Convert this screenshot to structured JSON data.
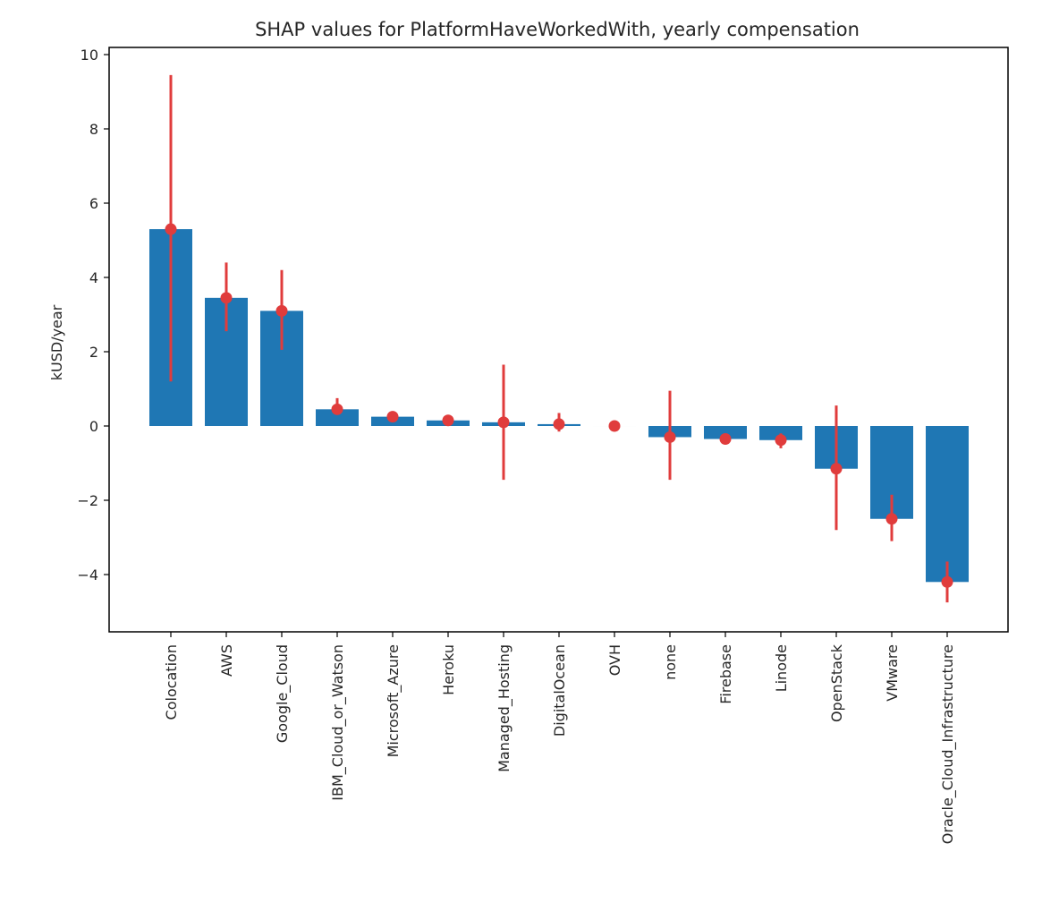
{
  "chart_data": {
    "type": "bar",
    "title": "SHAP values for PlatformHaveWorkedWith, yearly compensation",
    "xlabel": "",
    "ylabel": "kUSD/year",
    "ylim": [
      -5.5,
      10.2
    ],
    "yticks": [
      10,
      8,
      6,
      4,
      2,
      0,
      -2,
      -4
    ],
    "ytick_labels": [
      "10",
      "8",
      "6",
      "4",
      "2",
      "0",
      "−2",
      "−4"
    ],
    "grid": false,
    "categories": [
      "Colocation",
      "AWS",
      "Google_Cloud",
      "IBM_Cloud_or_Watson",
      "Microsoft_Azure",
      "Heroku",
      "Managed_Hosting",
      "DigitalOcean",
      "OVH",
      "none",
      "Firebase",
      "Linode",
      "OpenStack",
      "VMware",
      "Oracle_Cloud_Infrastructure"
    ],
    "values": [
      5.3,
      3.45,
      3.1,
      0.45,
      0.25,
      0.15,
      0.1,
      0.05,
      0.0,
      -0.3,
      -0.35,
      -0.38,
      -1.15,
      -2.5,
      -4.2
    ],
    "error_low": [
      1.2,
      2.55,
      2.05,
      0.3,
      0.22,
      0.13,
      -1.45,
      -0.15,
      -0.03,
      -1.45,
      -0.4,
      -0.6,
      -2.8,
      -3.1,
      -4.75
    ],
    "error_high": [
      9.45,
      4.4,
      4.2,
      0.75,
      0.28,
      0.17,
      1.65,
      0.35,
      0.03,
      0.95,
      -0.3,
      -0.2,
      0.55,
      -1.85,
      -3.65
    ],
    "colors": {
      "bar": "#1f77b4",
      "marker": "#e03c3c"
    }
  }
}
